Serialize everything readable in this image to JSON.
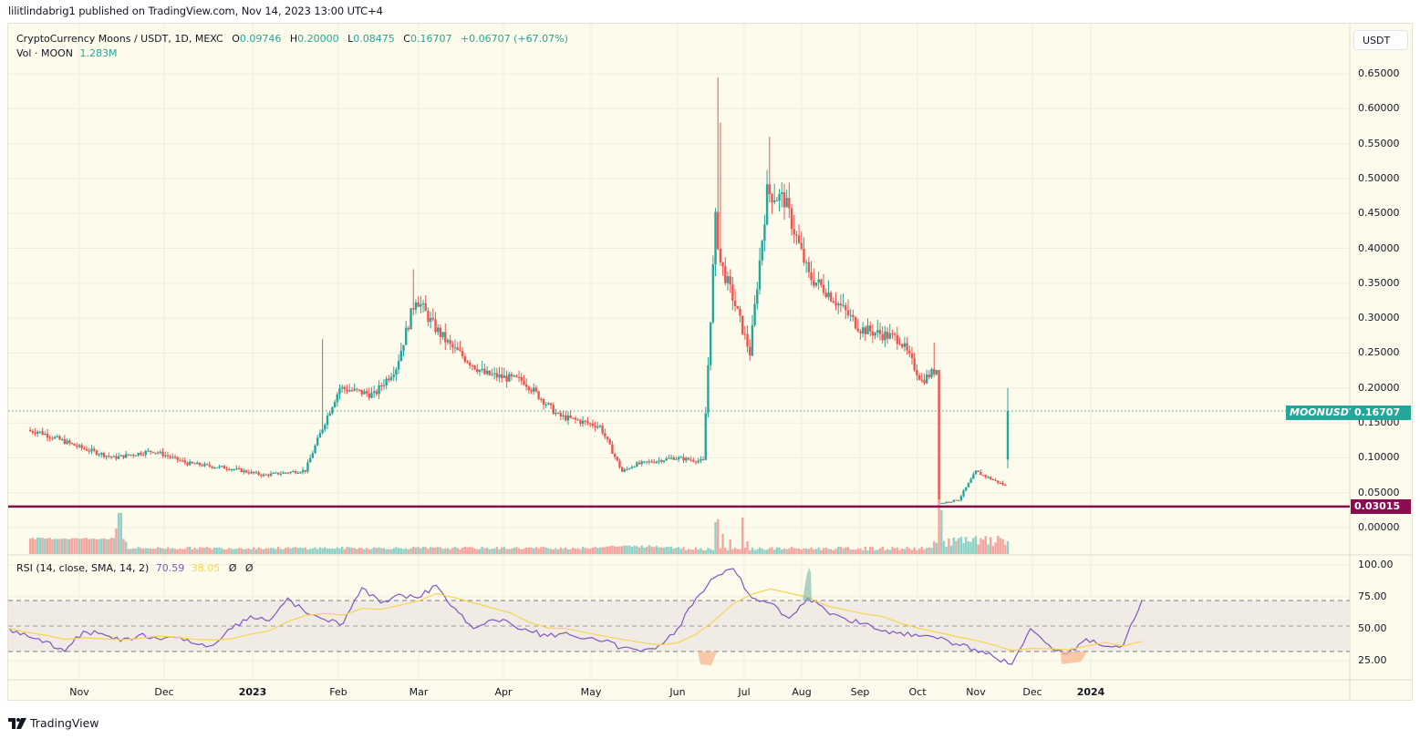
{
  "header": {
    "published_line": "lilitlindabrig1 published on TradingView.com, Nov 14, 2023 13:00 UTC+4"
  },
  "legend": {
    "symbol_line": "CryptoCurrency Moons / USDT, 1D, MEXC",
    "open_label": "O",
    "open": "0.09746",
    "high_label": "H",
    "high": "0.20000",
    "low_label": "L",
    "low": "0.08475",
    "close_label": "C",
    "close": "0.16707",
    "change": "+0.06707 (+67.07%)",
    "volume_label": "Vol · MOON",
    "volume": "1.283M"
  },
  "rsi_legend": {
    "label": "RSI (14, close, SMA, 14, 2)",
    "rsi_value": "70.59",
    "sma_value": "38.05",
    "na1": "Ø",
    "na2": "Ø"
  },
  "price_axis": {
    "currency_button": "USDT",
    "ticks": [
      "0.65000",
      "0.60000",
      "0.55000",
      "0.50000",
      "0.45000",
      "0.40000",
      "0.35000",
      "0.30000",
      "0.25000",
      "0.20000",
      "0.15000",
      "0.10000",
      "0.05000",
      "0.00000"
    ],
    "last_price_ticker": "MOONUSDT",
    "last_price": "0.16707",
    "hline_price": "0.03015"
  },
  "rsi_axis": {
    "ticks": [
      "100.00",
      "75.00",
      "50.00",
      "25.00"
    ]
  },
  "time_axis": {
    "labels": [
      {
        "text": "Nov",
        "x": 87,
        "bold": false
      },
      {
        "text": "Dec",
        "x": 180,
        "bold": false
      },
      {
        "text": "2023",
        "x": 277,
        "bold": true
      },
      {
        "text": "Feb",
        "x": 371,
        "bold": false
      },
      {
        "text": "Mar",
        "x": 459,
        "bold": false
      },
      {
        "text": "Apr",
        "x": 552,
        "bold": false
      },
      {
        "text": "May",
        "x": 648,
        "bold": false
      },
      {
        "text": "Jun",
        "x": 743,
        "bold": false
      },
      {
        "text": "Jul",
        "x": 816,
        "bold": false
      },
      {
        "text": "Aug",
        "x": 879,
        "bold": false
      },
      {
        "text": "Sep",
        "x": 943,
        "bold": false
      },
      {
        "text": "Oct",
        "x": 1006,
        "bold": false
      },
      {
        "text": "Nov",
        "x": 1070,
        "bold": false
      },
      {
        "text": "Dec",
        "x": 1132,
        "bold": false
      },
      {
        "text": "2024",
        "x": 1196,
        "bold": true
      }
    ]
  },
  "footer": {
    "brand": "TradingView"
  },
  "colors": {
    "up": "#26a69a",
    "down": "#ef5350",
    "up_vol": "#8fd1c7",
    "down_vol": "#f5a59f",
    "hline": "#880e4f",
    "rsi": "#7e57c2",
    "rsi_sma": "#f7d350",
    "background": "#fdfbec",
    "grid": "#efece0"
  },
  "chart_data": {
    "type": "candlestick",
    "title": "CryptoCurrency Moons / USDT, 1D, MEXC",
    "symbol": "MOONUSDT",
    "exchange": "MEXC",
    "interval": "1D",
    "ylabel": "USDT",
    "ylim": [
      0.0,
      0.65
    ],
    "y_ticks": [
      0.0,
      0.05,
      0.1,
      0.15,
      0.2,
      0.25,
      0.3,
      0.35,
      0.4,
      0.45,
      0.5,
      0.55,
      0.6,
      0.65
    ],
    "x_tick_labels": [
      "Nov",
      "Dec",
      "2023",
      "Feb",
      "Mar",
      "Apr",
      "May",
      "Jun",
      "Jul",
      "Aug",
      "Sep",
      "Oct",
      "Nov",
      "Dec",
      "2024"
    ],
    "last": {
      "open": 0.09746,
      "high": 0.2,
      "low": 0.08475,
      "close": 0.16707,
      "change": 0.06707,
      "change_pct": 67.07,
      "volume": "1.283M"
    },
    "horizontal_line": 0.03015,
    "approx_close_series": {
      "note": "approximate daily closes read from the chart, one point per ~2 weeks",
      "dates": [
        "2022-10-15",
        "2022-11-01",
        "2022-11-15",
        "2022-12-01",
        "2022-12-15",
        "2023-01-01",
        "2023-01-15",
        "2023-02-01",
        "2023-02-10",
        "2023-02-15",
        "2023-03-01",
        "2023-03-10",
        "2023-03-18",
        "2023-03-25",
        "2023-04-01",
        "2023-04-15",
        "2023-05-01",
        "2023-05-15",
        "2023-06-01",
        "2023-06-10",
        "2023-06-15",
        "2023-07-01",
        "2023-07-13",
        "2023-07-18",
        "2023-07-20",
        "2023-07-25",
        "2023-08-01",
        "2023-08-08",
        "2023-08-15",
        "2023-08-25",
        "2023-09-01",
        "2023-09-15",
        "2023-10-01",
        "2023-10-10",
        "2023-10-17",
        "2023-10-18",
        "2023-10-25",
        "2023-11-01",
        "2023-11-13",
        "2023-11-14"
      ],
      "close": [
        0.138,
        0.115,
        0.1,
        0.11,
        0.092,
        0.085,
        0.075,
        0.082,
        0.16,
        0.2,
        0.19,
        0.23,
        0.33,
        0.29,
        0.26,
        0.22,
        0.21,
        0.16,
        0.145,
        0.08,
        0.09,
        0.1,
        0.095,
        0.44,
        0.38,
        0.33,
        0.25,
        0.48,
        0.47,
        0.36,
        0.34,
        0.285,
        0.27,
        0.21,
        0.23,
        0.035,
        0.04,
        0.08,
        0.06,
        0.167
      ]
    },
    "volume_spikes": [
      {
        "date": "2022-11-18",
        "relative": "high"
      },
      {
        "date": "2023-07-18",
        "relative": "high"
      },
      {
        "date": "2023-07-29",
        "relative": "high"
      },
      {
        "date": "2023-10-17",
        "relative": "very high"
      }
    ],
    "rsi": {
      "params": "14, close, SMA, 14, 2",
      "last_rsi": 70.59,
      "last_sma": 38.05,
      "bands": {
        "upper": 70,
        "middle": 50,
        "lower": 30
      },
      "ylim": [
        0,
        100
      ],
      "y_ticks": [
        25,
        50,
        75,
        100
      ],
      "approx_rsi_series": [
        48,
        42,
        38,
        30,
        46,
        44,
        38,
        43,
        40,
        41,
        36,
        35,
        48,
        58,
        54,
        72,
        60,
        55,
        52,
        80,
        68,
        75,
        72,
        82,
        64,
        48,
        55,
        52,
        46,
        42,
        45,
        40,
        38,
        33,
        30,
        35,
        48,
        72,
        88,
        95,
        72,
        68,
        56,
        72,
        62,
        56,
        52,
        46,
        45,
        42,
        40,
        36,
        32,
        26,
        20,
        48,
        35,
        28,
        40,
        34,
        35,
        70
      ]
    }
  }
}
